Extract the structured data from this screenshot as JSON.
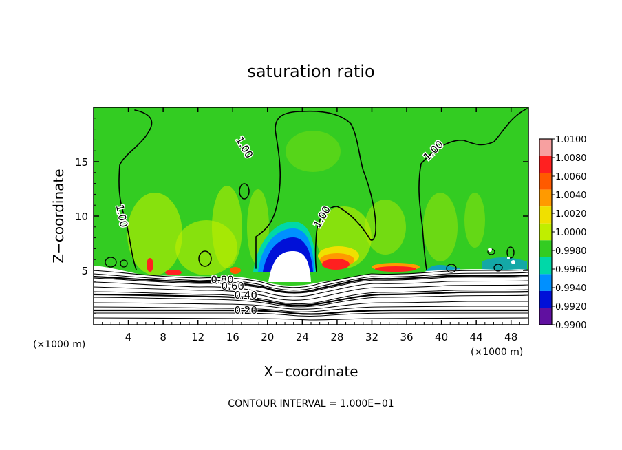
{
  "chart_data": {
    "type": "heatmap",
    "title": "saturation ratio",
    "xlabel": "X−coordinate",
    "ylabel": "Z−coordinate",
    "x_unit_left": "(×1000 m)",
    "x_unit_right": "(×1000 m)",
    "xlim": [
      0,
      50
    ],
    "ylim": [
      0,
      20
    ],
    "x_ticks": [
      4,
      8,
      12,
      16,
      20,
      24,
      28,
      32,
      36,
      40,
      44,
      48
    ],
    "x_tick_labels": [
      "4",
      "8",
      "12",
      "16",
      "20",
      "24",
      "28",
      "32",
      "36",
      "40",
      "44",
      "48"
    ],
    "y_ticks": [
      5,
      10,
      15
    ],
    "y_tick_labels": [
      "5",
      "10",
      "15"
    ],
    "footer": "CONTOUR INTERVAL = 1.000E−01",
    "colorbar": {
      "levels": [
        "1.0100",
        "1.0080",
        "1.0060",
        "1.0040",
        "1.0020",
        "1.0000",
        "0.9980",
        "0.9960",
        "0.9940",
        "0.9920",
        "0.9900"
      ],
      "colors": [
        "#f7a0a0",
        "#ff2020",
        "#ff5a00",
        "#ff9a00",
        "#f0e000",
        "#c0ee00",
        "#33cc22",
        "#00d8a8",
        "#0090ff",
        "#0010d8",
        "#6010a0"
      ]
    },
    "contour_labels": [
      {
        "text": "1.00",
        "x": 17.3,
        "z": 16.3,
        "angle": 60
      },
      {
        "text": "1.00",
        "x": 3.2,
        "z": 10.0,
        "angle": 78
      },
      {
        "text": "1.00",
        "x": 26.3,
        "z": 9.9,
        "angle": -60
      },
      {
        "text": "1.00",
        "x": 39.1,
        "z": 16.0,
        "angle": -45
      },
      {
        "text": "0.80",
        "x": 14.8,
        "z": 4.1,
        "angle": 0
      },
      {
        "text": "0.60",
        "x": 16.0,
        "z": 3.5,
        "angle": 0
      },
      {
        "text": "0.40",
        "x": 17.5,
        "z": 2.7,
        "angle": 0
      },
      {
        "text": "0.20",
        "x": 17.5,
        "z": 1.3,
        "angle": 0
      }
    ]
  }
}
